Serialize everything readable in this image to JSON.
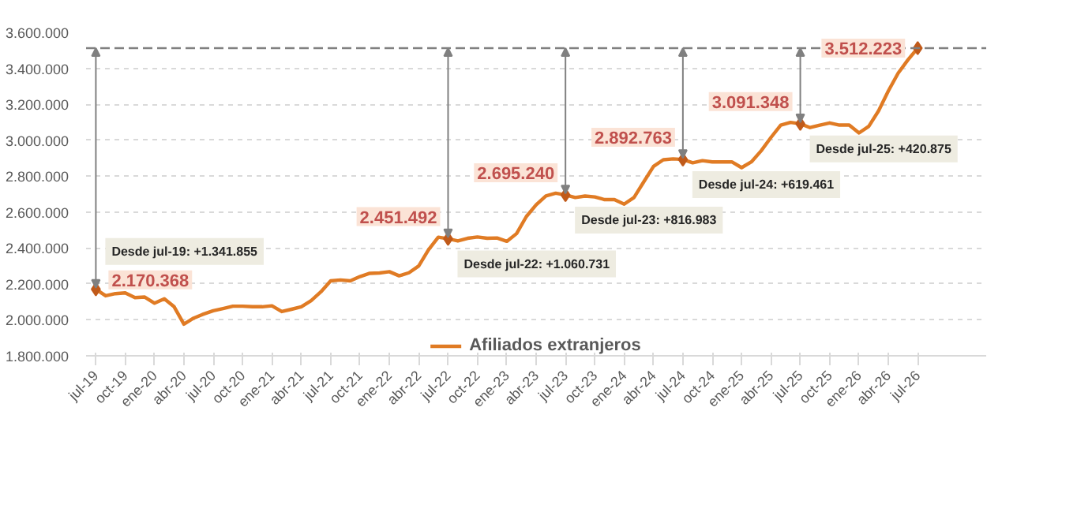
{
  "chart_data": {
    "type": "line",
    "categories": [
      "jul-19",
      null,
      null,
      "oct-19",
      null,
      null,
      "ene-20",
      null,
      null,
      "abr-20",
      null,
      null,
      "jul-20",
      null,
      null,
      "oct-20",
      null,
      null,
      "ene-21",
      null,
      null,
      "abr-21",
      null,
      null,
      "jul-21",
      null,
      null,
      "oct-21",
      null,
      null,
      "ene-22",
      null,
      null,
      "abr-22",
      null,
      null,
      "jul-22",
      null,
      null,
      "oct-22",
      null,
      null,
      "ene-23",
      null,
      null,
      "abr-23",
      null,
      null,
      "jul-23",
      null,
      null,
      "oct-23",
      null,
      null,
      "ene-24",
      null,
      null,
      "abr-24",
      null,
      null,
      "jul-24",
      null,
      null,
      "oct-24",
      null,
      null,
      "ene-25",
      null,
      null,
      "abr-25",
      null,
      null,
      "jul-25",
      null,
      null,
      "oct-25",
      null,
      null,
      "ene-26",
      null,
      null,
      "abr-26",
      null,
      null,
      "jul-26"
    ],
    "series": [
      {
        "name": "Afiliados extranjeros",
        "color": "#e07b24",
        "values": [
          2170368,
          2134000,
          2146000,
          2150000,
          2124000,
          2127000,
          2093000,
          2117000,
          2073000,
          1976000,
          2010000,
          2032000,
          2051000,
          2063000,
          2076000,
          2076000,
          2073000,
          2073000,
          2078000,
          2046000,
          2059000,
          2073000,
          2107000,
          2156000,
          2217000,
          2222000,
          2217000,
          2241000,
          2259000,
          2261000,
          2268000,
          2245000,
          2262000,
          2300000,
          2390000,
          2460000,
          2451492,
          2439000,
          2454000,
          2461000,
          2454000,
          2456000,
          2437000,
          2480000,
          2575000,
          2640000,
          2690000,
          2705000,
          2695240,
          2681000,
          2689000,
          2684000,
          2669000,
          2669000,
          2644000,
          2681000,
          2768000,
          2854000,
          2891000,
          2896000,
          2892763,
          2874000,
          2886000,
          2879000,
          2879000,
          2879000,
          2847000,
          2879000,
          2941000,
          3015000,
          3084000,
          3099000,
          3091348,
          3070000,
          3084000,
          3096000,
          3084000,
          3084000,
          3040000,
          3077000,
          3163000,
          3274000,
          3373000,
          3447000,
          3512223
        ],
        "value_labels": [
          "2.170.368",
          null,
          null,
          null,
          null,
          null,
          null,
          null,
          null,
          null,
          null,
          null,
          null,
          null,
          null,
          null,
          null,
          null,
          null,
          null,
          null,
          null,
          null,
          null,
          null,
          null,
          null,
          null,
          null,
          null,
          null,
          null,
          null,
          null,
          null,
          null,
          "2.451.492",
          null,
          null,
          null,
          null,
          null,
          null,
          null,
          null,
          null,
          null,
          null,
          "2.695.240",
          null,
          null,
          null,
          null,
          null,
          null,
          null,
          null,
          null,
          null,
          null,
          "2.892.763",
          null,
          null,
          null,
          null,
          null,
          null,
          null,
          null,
          null,
          null,
          null,
          "3.091.348",
          null,
          null,
          null,
          null,
          null,
          null,
          null,
          null,
          null,
          null,
          null,
          "3.512.223"
        ]
      }
    ],
    "ylim": [
      1800000,
      3600000
    ],
    "yticks": [
      {
        "value": 1800000,
        "label": "1.800.000"
      },
      {
        "value": 2000000,
        "label": "2.000.000"
      },
      {
        "value": 2200000,
        "label": "2.200.000"
      },
      {
        "value": 2400000,
        "label": "2.400.000"
      },
      {
        "value": 2600000,
        "label": "2.600.000"
      },
      {
        "value": 2800000,
        "label": "2.800.000"
      },
      {
        "value": 3000000,
        "label": "3.000.000"
      },
      {
        "value": 3200000,
        "label": "3.200.000"
      },
      {
        "value": 3400000,
        "label": "3.400.000"
      },
      {
        "value": 3600000,
        "label": "3.600.000"
      }
    ],
    "ref_lines": [
      {
        "axis": "y",
        "value": 3512223,
        "color": "#808080",
        "line_style": "dashed"
      }
    ],
    "annotations": [
      {
        "text": "Desde jul-19: +1.341.855",
        "x": "jul-19",
        "y": 2170368
      },
      {
        "text": "Desde jul-22: +1.060.731",
        "x": "jul-22",
        "y": 2451492
      },
      {
        "text": "Desde jul-23: +816.983",
        "x": "jul-23",
        "y": 2695240
      },
      {
        "text": "Desde jul-24: +619.461",
        "x": "jul-24",
        "y": 2892763
      },
      {
        "text": "Desde jul-25: +420.875",
        "x": "jul-25",
        "y": 3091348
      }
    ],
    "grid": "y",
    "legend": "bottom",
    "line_style": "solid"
  }
}
